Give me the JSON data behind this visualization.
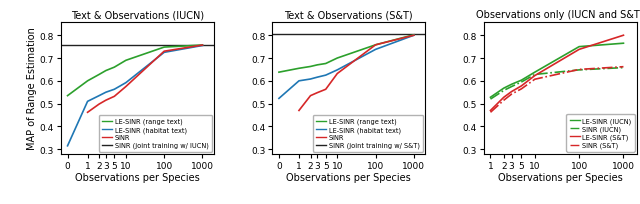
{
  "titles": [
    "Text & Observations (IUCN)",
    "Text & Observations (S&T)",
    "Observations only (IUCN and S&T)"
  ],
  "xlabel": "Observations per Species",
  "ylabel": "MAP of Range Estimation",
  "ylim": [
    0.28,
    0.86
  ],
  "yticks": [
    0.3,
    0.4,
    0.5,
    0.6,
    0.7,
    0.8
  ],
  "panel1": {
    "hline": 0.758,
    "green_x": [
      0.3,
      1,
      2,
      3,
      5,
      10,
      100,
      1000
    ],
    "green_y": [
      0.535,
      0.6,
      0.628,
      0.645,
      0.66,
      0.69,
      0.748,
      0.757
    ],
    "blue_x": [
      0.3,
      1,
      2,
      3,
      5,
      10,
      100,
      1000
    ],
    "blue_y": [
      0.315,
      0.51,
      0.535,
      0.55,
      0.563,
      0.592,
      0.725,
      0.755
    ],
    "red_x": [
      1,
      2,
      3,
      5,
      10,
      100,
      1000
    ],
    "red_y": [
      0.462,
      0.498,
      0.515,
      0.532,
      0.575,
      0.73,
      0.757
    ],
    "legend": [
      "LE-SINR (range text)",
      "LE-SINR (habitat text)",
      "SINR",
      "SINR (joint training w/ IUCN)"
    ]
  },
  "panel2": {
    "hline": 0.806,
    "green_x": [
      0.3,
      1,
      2,
      3,
      5,
      10,
      100,
      1000
    ],
    "green_y": [
      0.638,
      0.655,
      0.663,
      0.67,
      0.676,
      0.7,
      0.758,
      0.802
    ],
    "blue_x": [
      0.3,
      1,
      2,
      3,
      5,
      10,
      100,
      1000
    ],
    "blue_y": [
      0.523,
      0.6,
      0.608,
      0.616,
      0.625,
      0.648,
      0.738,
      0.8
    ],
    "red_x": [
      1,
      2,
      3,
      5,
      10,
      100,
      1000
    ],
    "red_y": [
      0.47,
      0.535,
      0.548,
      0.563,
      0.632,
      0.758,
      0.8
    ],
    "legend": [
      "LE-SINR (range text)",
      "LE-SINR (habitat text)",
      "SINR",
      "SINR (joint training w/ S&T)"
    ]
  },
  "panel3": {
    "green_solid_x": [
      1,
      2,
      3,
      5,
      10,
      100,
      1000
    ],
    "green_solid_y": [
      0.528,
      0.568,
      0.585,
      0.603,
      0.638,
      0.75,
      0.765
    ],
    "green_dash_x": [
      1,
      2,
      3,
      5,
      10,
      100,
      1000
    ],
    "green_dash_y": [
      0.52,
      0.558,
      0.575,
      0.595,
      0.628,
      0.648,
      0.658
    ],
    "red_solid_x": [
      1,
      2,
      3,
      5,
      10,
      100,
      1000
    ],
    "red_solid_y": [
      0.47,
      0.528,
      0.553,
      0.578,
      0.623,
      0.738,
      0.8
    ],
    "red_dash_x": [
      1,
      2,
      3,
      5,
      10,
      100,
      1000
    ],
    "red_dash_y": [
      0.462,
      0.515,
      0.542,
      0.565,
      0.607,
      0.65,
      0.662
    ],
    "legend": [
      "LE-SINR (IUCN)",
      "SINR (IUCN)",
      "LE-SINR (S&T)",
      "SINR (S&T)"
    ]
  },
  "colors": {
    "green": "#2ca02c",
    "blue": "#1f77b4",
    "red": "#d62728",
    "black": "#222222"
  }
}
